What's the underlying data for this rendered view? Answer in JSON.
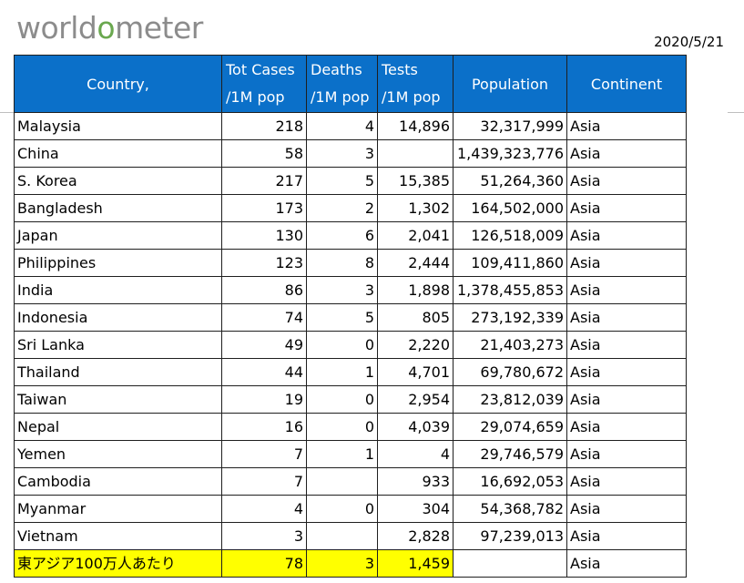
{
  "logo": {
    "part1": "world",
    "part2": "o",
    "part3": "meter"
  },
  "date": "2020/5/21",
  "table": {
    "headers": {
      "country": "Country,",
      "cases_l1": "Tot Cases",
      "cases_l2": "/1M pop",
      "deaths_l1": "Deaths",
      "deaths_l2": "/1M pop",
      "tests_l1": "Tests",
      "tests_l2": "/1M pop",
      "population": "Population",
      "continent": "Continent"
    },
    "rows": [
      {
        "country": "Malaysia",
        "cases": "218",
        "deaths": "4",
        "tests": "14,896",
        "population": "32,317,999",
        "continent": "Asia"
      },
      {
        "country": "China",
        "cases": "58",
        "deaths": "3",
        "tests": "",
        "population": "1,439,323,776",
        "continent": "Asia"
      },
      {
        "country": "S. Korea",
        "cases": "217",
        "deaths": "5",
        "tests": "15,385",
        "population": "51,264,360",
        "continent": "Asia"
      },
      {
        "country": "Bangladesh",
        "cases": "173",
        "deaths": "2",
        "tests": "1,302",
        "population": "164,502,000",
        "continent": "Asia"
      },
      {
        "country": "Japan",
        "cases": "130",
        "deaths": "6",
        "tests": "2,041",
        "population": "126,518,009",
        "continent": "Asia"
      },
      {
        "country": "Philippines",
        "cases": "123",
        "deaths": "8",
        "tests": "2,444",
        "population": "109,411,860",
        "continent": "Asia"
      },
      {
        "country": "India",
        "cases": "86",
        "deaths": "3",
        "tests": "1,898",
        "population": "1,378,455,853",
        "continent": "Asia"
      },
      {
        "country": "Indonesia",
        "cases": "74",
        "deaths": "5",
        "tests": "805",
        "population": "273,192,339",
        "continent": "Asia"
      },
      {
        "country": "Sri Lanka",
        "cases": "49",
        "deaths": "0",
        "tests": "2,220",
        "population": "21,403,273",
        "continent": "Asia"
      },
      {
        "country": "Thailand",
        "cases": "44",
        "deaths": "1",
        "tests": "4,701",
        "population": "69,780,672",
        "continent": "Asia"
      },
      {
        "country": "Taiwan",
        "cases": "19",
        "deaths": "0",
        "tests": "2,954",
        "population": "23,812,039",
        "continent": "Asia"
      },
      {
        "country": "Nepal",
        "cases": "16",
        "deaths": "0",
        "tests": "4,039",
        "population": "29,074,659",
        "continent": "Asia"
      },
      {
        "country": "Yemen",
        "cases": "7",
        "deaths": "1",
        "tests": "4",
        "population": "29,746,579",
        "continent": "Asia"
      },
      {
        "country": "Cambodia",
        "cases": "7",
        "deaths": "",
        "tests": "933",
        "population": "16,692,053",
        "continent": "Asia"
      },
      {
        "country": "Myanmar",
        "cases": "4",
        "deaths": "0",
        "tests": "304",
        "population": "54,368,782",
        "continent": "Asia"
      },
      {
        "country": "Vietnam",
        "cases": "3",
        "deaths": "",
        "tests": "2,828",
        "population": "97,239,013",
        "continent": "Asia"
      }
    ],
    "summary": {
      "label": "東アジア100万人あたり",
      "cases": "78",
      "deaths": "3",
      "tests": "1,459",
      "population": "",
      "continent": "Asia"
    }
  },
  "colors": {
    "header_bg": "#0b70c9",
    "highlight": "#ffff00",
    "logo_gray": "#8c8c8c",
    "logo_accent": "#6aa84f"
  }
}
